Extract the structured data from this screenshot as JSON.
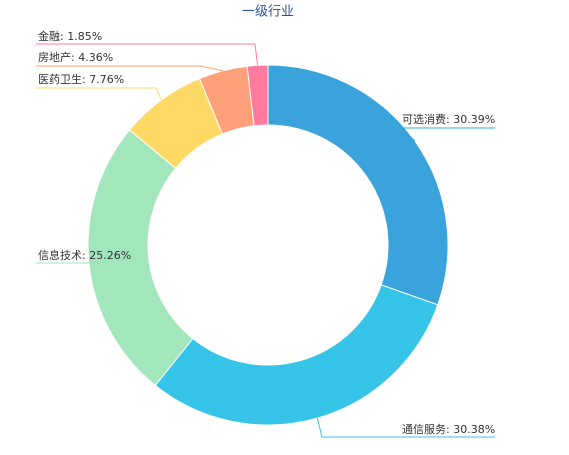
{
  "chart_data": {
    "type": "donut",
    "title": "一级行业",
    "values": [
      30.39,
      30.38,
      25.26,
      7.76,
      4.36,
      1.85
    ],
    "value_labels": [
      "可选消费: 30.39%",
      "通信服务: 30.38%",
      "信息技术: 25.26%",
      "医药卫生: 7.76%",
      "房地产: 4.36%",
      "金融: 1.85%"
    ],
    "colors": [
      "#3ba3db",
      "#36c4e8",
      "#a2e6bc",
      "#ffd966",
      "#ffa07a",
      "#ff7a9c"
    ]
  }
}
